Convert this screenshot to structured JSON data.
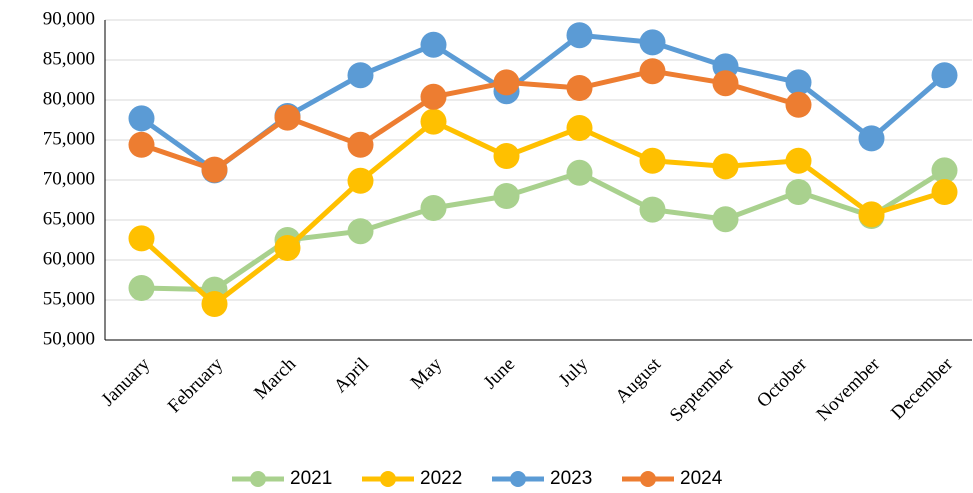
{
  "chart_data": {
    "type": "line",
    "categories": [
      "January",
      "February",
      "March",
      "April",
      "May",
      "June",
      "July",
      "August",
      "September",
      "October",
      "November",
      "December"
    ],
    "series": [
      {
        "name": "2021",
        "color": "#a9d18e",
        "values": [
          56500,
          56300,
          62500,
          63600,
          66500,
          68000,
          70900,
          66300,
          65100,
          68500,
          65500,
          71200
        ]
      },
      {
        "name": "2022",
        "color": "#ffc000",
        "values": [
          62700,
          54500,
          61500,
          69900,
          77300,
          73000,
          76500,
          72400,
          71700,
          72400,
          65700,
          68500
        ]
      },
      {
        "name": "2023",
        "color": "#5b9bd5",
        "values": [
          77700,
          71200,
          78000,
          83100,
          86900,
          81100,
          88100,
          87200,
          84200,
          82200,
          75200,
          83100
        ]
      },
      {
        "name": "2024",
        "color": "#ed7d31",
        "values": [
          74400,
          71300,
          77800,
          74400,
          80400,
          82200,
          81500,
          83600,
          82100,
          79400,
          null,
          null
        ]
      }
    ],
    "ylim": [
      50000,
      90000
    ],
    "yticks": [
      {
        "value": 50000,
        "label": "50,000"
      },
      {
        "value": 55000,
        "label": "55,000"
      },
      {
        "value": 60000,
        "label": "60,000"
      },
      {
        "value": 65000,
        "label": "65,000"
      },
      {
        "value": 70000,
        "label": "70,000"
      },
      {
        "value": 75000,
        "label": "75,000"
      },
      {
        "value": 80000,
        "label": "80,000"
      },
      {
        "value": 85000,
        "label": "85,000"
      },
      {
        "value": 90000,
        "label": "90,000"
      }
    ],
    "grid": true,
    "legend": "bottom"
  }
}
